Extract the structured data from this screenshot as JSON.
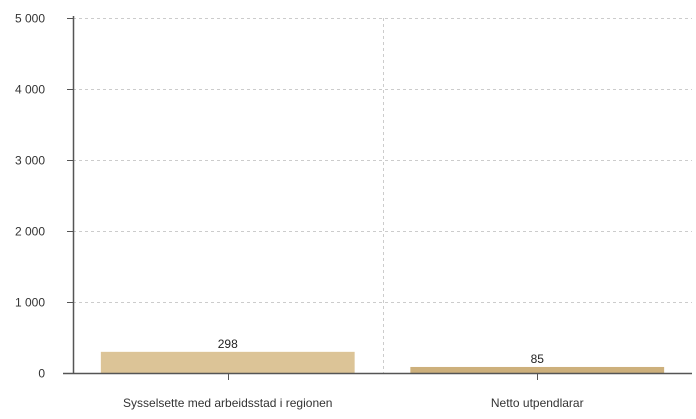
{
  "chart_data": {
    "type": "bar",
    "categories": [
      "Sysselsette med arbeidsstad i regionen",
      "Netto utpendlarar"
    ],
    "values": [
      298,
      85
    ],
    "value_labels": [
      "298",
      "85"
    ],
    "bar_colors": [
      "#dcc497",
      "#cdb07c"
    ],
    "ylim": [
      0,
      5000
    ],
    "yticks": [
      0,
      1000,
      2000,
      3000,
      4000,
      5000
    ],
    "ytick_labels": [
      "0",
      "1 000",
      "2 000",
      "3 000",
      "4 000",
      "5 000"
    ],
    "title": "",
    "xlabel": "",
    "ylabel": "",
    "grid": true,
    "legend": "none"
  }
}
